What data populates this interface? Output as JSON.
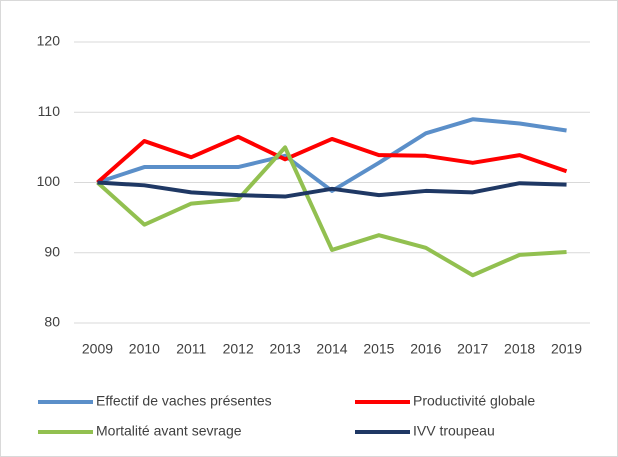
{
  "chart_data": {
    "type": "line",
    "categories": [
      "2009",
      "2010",
      "2011",
      "2012",
      "2013",
      "2014",
      "2015",
      "2016",
      "2017",
      "2018",
      "2019"
    ],
    "series": [
      {
        "name": "Effectif de vaches présentes",
        "color": "#5b8fc9",
        "values": [
          100,
          102.2,
          102.2,
          102.2,
          103.8,
          98.8,
          102.8,
          107,
          109,
          108.4,
          107.4
        ]
      },
      {
        "name": "Productivité globale",
        "color": "#ff0000",
        "values": [
          100,
          105.9,
          103.6,
          106.5,
          103.3,
          106.2,
          103.9,
          103.8,
          102.8,
          103.9,
          101.6
        ]
      },
      {
        "name": "Mortalité avant sevrage",
        "color": "#92c050",
        "values": [
          100,
          94,
          97,
          97.6,
          105,
          90.4,
          92.5,
          90.7,
          86.8,
          89.7,
          90.1
        ]
      },
      {
        "name": "IVV troupeau",
        "color": "#1f3864",
        "values": [
          100,
          99.6,
          98.6,
          98.2,
          98,
          99.1,
          98.2,
          98.8,
          98.6,
          99.9,
          99.7
        ]
      }
    ],
    "ylim": [
      80,
      120
    ],
    "yticks": [
      80,
      90,
      100,
      110,
      120
    ],
    "grid": true,
    "legend": "bottom"
  }
}
